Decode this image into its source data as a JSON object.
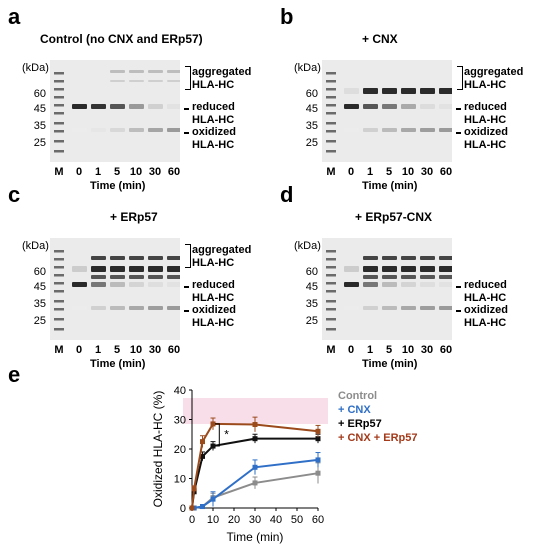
{
  "panels": [
    {
      "letter": "a",
      "title": "Control (no CNX and ERp57)",
      "kda": "(kDa)",
      "markers": [
        "60",
        "45",
        "35",
        "25"
      ],
      "lanes": [
        "M",
        "0",
        "1",
        "5",
        "10",
        "30",
        "60"
      ],
      "time_label": "Time (min)",
      "side": {
        "aggregated": "aggregated",
        "agg_hc": "HLA-HC",
        "reduced": "reduced",
        "red_hc": "HLA-HC",
        "oxidized": "oxidized",
        "ox_hc": "HLA-HC"
      }
    },
    {
      "letter": "b",
      "title": "+ CNX",
      "kda": "(kDa)",
      "markers": [
        "60",
        "45",
        "35",
        "25"
      ],
      "lanes": [
        "M",
        "0",
        "1",
        "5",
        "10",
        "30",
        "60"
      ],
      "time_label": "Time (min)",
      "side": {
        "aggregated": "aggregated",
        "agg_hc": "HLA-HC",
        "reduced": "reduced",
        "red_hc": "HLA-HC",
        "oxidized": "oxidized",
        "ox_hc": "HLA-HC"
      }
    },
    {
      "letter": "c",
      "title": "+ ERp57",
      "kda": "(kDa)",
      "markers": [
        "60",
        "45",
        "35",
        "25"
      ],
      "lanes": [
        "M",
        "0",
        "1",
        "5",
        "10",
        "30",
        "60"
      ],
      "time_label": "Time (min)",
      "side": {
        "aggregated": "aggregated",
        "agg_hc": "HLA-HC",
        "reduced": "reduced",
        "red_hc": "HLA-HC",
        "oxidized": "oxidized",
        "ox_hc": "HLA-HC"
      }
    },
    {
      "letter": "d",
      "title": "+ ERp57-CNX",
      "kda": "(kDa)",
      "markers": [
        "60",
        "45",
        "35",
        "25"
      ],
      "lanes": [
        "M",
        "0",
        "1",
        "5",
        "10",
        "30",
        "60"
      ],
      "time_label": "Time (min)",
      "side": {
        "reduced": "reduced",
        "red_hc": "HLA-HC",
        "oxidized": "oxidized",
        "ox_hc": "HLA-HC"
      }
    }
  ],
  "panel_e": {
    "letter": "e"
  },
  "chart_data": {
    "type": "line",
    "xlabel": "Time (min)",
    "ylabel": "Oxidized HLA-HC (%)",
    "xlim": [
      0,
      60
    ],
    "ylim": [
      0,
      40
    ],
    "xticks": [
      0,
      10,
      20,
      30,
      40,
      50,
      60
    ],
    "yticks": [
      0,
      10,
      20,
      30,
      40
    ],
    "x": [
      0,
      1,
      5,
      10,
      30,
      60
    ],
    "annotation": "*",
    "series": [
      {
        "name": "Control",
        "color": "#8c8c8c",
        "values": [
          0,
          0,
          0.5,
          3.5,
          8.5,
          11.8
        ],
        "errors": [
          0,
          0,
          0.5,
          1.5,
          2.0,
          3.5
        ]
      },
      {
        "name": "+ CNX",
        "color": "#2f6fc7",
        "values": [
          0,
          0,
          0.5,
          3.0,
          13.8,
          16.3
        ],
        "errors": [
          0,
          0,
          0.5,
          2.5,
          2.5,
          2.5
        ]
      },
      {
        "name": "+ ERp57",
        "color": "#111111",
        "values": [
          0,
          5.5,
          17.5,
          21.0,
          23.5,
          23.5
        ],
        "errors": [
          0,
          1.0,
          1.5,
          1.5,
          1.5,
          1.5
        ]
      },
      {
        "name": "+ CNX + ERp57",
        "color": "#9b4a1c",
        "values": [
          0,
          6.5,
          22.5,
          28.5,
          28.3,
          26.0
        ],
        "errors": [
          0,
          1.0,
          2.0,
          2.0,
          2.5,
          2.0
        ]
      }
    ],
    "legend_colors": {
      "control": "#8c8c8c",
      "cnx": "#2f6fc7",
      "erp57": "#000000",
      "both": "#a33a1a"
    }
  }
}
